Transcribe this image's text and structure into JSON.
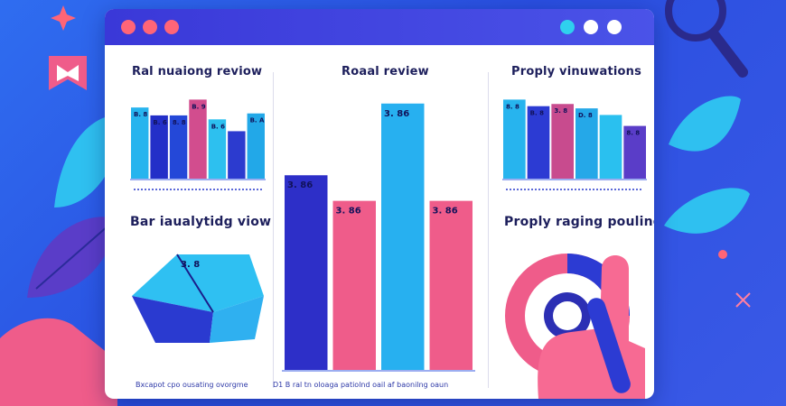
{
  "window": {
    "title_dots_left": 3,
    "title_dots_right": 3
  },
  "panels": {
    "left_top_title": "Ral nuaiong reviow",
    "left_bottom_title": "Bar iaualytidg viow",
    "center_title": "Roaal review",
    "right_top_title": "Proply vinuwations",
    "right_bottom_title": "Proply raging pouling",
    "left_caption": "Bxcapot cpo ousating ovorgme",
    "center_caption": "D1 B ral tn oloaga patiolnd oail af baonilng oaun"
  },
  "chart_data": [
    {
      "id": "left_top",
      "type": "bar",
      "title": "Ral nuaiong reviow",
      "values": [
        3.6,
        3.2,
        3.2,
        4.0,
        3.0,
        2.4,
        3.3
      ],
      "labels": [
        "B. 8",
        "B. 6",
        "8. 8",
        "B. 9",
        "B. 6",
        "",
        "B. A"
      ],
      "colors": [
        "#27b4ee",
        "#232fc8",
        "#2448d8",
        "#d24d8e",
        "#2dc0ef",
        "#2c3bcf",
        "#22a8e8"
      ]
    },
    {
      "id": "center",
      "type": "bar",
      "title": "Roaal review",
      "values": [
        3.8,
        3.3,
        5.2,
        3.3
      ],
      "labels": [
        "3. 86",
        "3. 86",
        "3. 86",
        "3. 86"
      ],
      "colors": [
        "#2d2fc8",
        "#ef5c8a",
        "#27b0f0",
        "#ef5c8a"
      ]
    },
    {
      "id": "right_top",
      "type": "bar",
      "title": "Proply vinuwations",
      "values": [
        3.6,
        3.3,
        3.4,
        3.2,
        2.9,
        2.4
      ],
      "labels": [
        "8. 8",
        "B. 8",
        "3. 8",
        "D. 8",
        "",
        "8. 8"
      ],
      "colors": [
        "#27b4ee",
        "#2c3bd3",
        "#c84b8e",
        "#25a8e8",
        "#2ac0ef",
        "#5a3dc8"
      ]
    },
    {
      "id": "left_bottom",
      "type": "pie",
      "title": "Bar iaualytidg viow",
      "labels": [
        "3. 8"
      ],
      "values": [
        3.8
      ]
    },
    {
      "id": "right_bottom",
      "type": "pie",
      "title": "Proply raging pouling",
      "values": [
        55,
        45
      ],
      "colors": [
        "#ef5c8a",
        "#2c3bd3"
      ]
    }
  ],
  "colors": {
    "background": "#2f63ea",
    "titlebar": "#3a3cd8",
    "dots_left": [
      "#ff6577",
      "#ff6577",
      "#ff6577"
    ],
    "dots_right": [
      "#2fd0ee",
      "#ffffff",
      "#ffffff"
    ],
    "title_text": "#1d1f5c",
    "accent_pink": "#ef5c8a",
    "accent_cyan": "#27b4ee",
    "accent_indigo": "#2d2fc8"
  },
  "icons": [
    "magnifier-icon",
    "bookmark-icon",
    "pointing-hand-icon",
    "leaf-icon",
    "sparkle-icon"
  ]
}
